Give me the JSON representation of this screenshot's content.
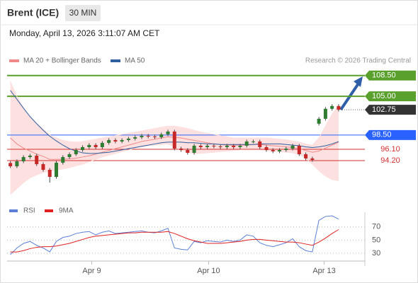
{
  "header": {
    "title": "Brent (ICE)",
    "interval": "30 MIN",
    "timestamp": "Monday, April 13, 2026 3:11:07 AM CET"
  },
  "chart_data": [
    {
      "type": "candlestick",
      "attribution": "Research © 2026 Trading Central",
      "up_color": "#2e7d32",
      "down_color": "#c62828",
      "xlim": [
        -0.5,
        54
      ],
      "ylim": [
        87.3,
        109.3
      ],
      "open": [
        93.8,
        93.24,
        94.08,
        94.79,
        95.03,
        93.6,
        92.65,
        91.46,
        93.84,
        94.79,
        95.27,
        95.98,
        96.46,
        96.82,
        96.46,
        97.18,
        97.65,
        97.41,
        97.65,
        97.89,
        98.13,
        98.37,
        98.25,
        98.13,
        98.61,
        99.08,
        96.22,
        95.98,
        95.51,
        96.7,
        96.46,
        96.7,
        96.58,
        96.46,
        96.7,
        96.46,
        96.7,
        97.41,
        97.41,
        96.46,
        95.98,
        95.75,
        95.98,
        96.22,
        96.7,
        95.27,
        94.56,
        100.4,
        101.23,
        102.9,
        103.37
      ],
      "high": [
        94.1,
        94.38,
        95.09,
        95.33,
        95.33,
        93.9,
        92.95,
        94.14,
        95.09,
        95.57,
        96.28,
        96.76,
        97.12,
        97.12,
        97.48,
        97.95,
        97.95,
        97.95,
        98.19,
        98.43,
        98.67,
        98.67,
        98.55,
        98.91,
        99.38,
        99.38,
        96.52,
        96.28,
        97.0,
        97.0,
        97.0,
        97.0,
        96.88,
        97.0,
        97.0,
        97.0,
        97.71,
        97.71,
        97.71,
        96.76,
        96.28,
        96.28,
        96.52,
        97.0,
        97.0,
        95.57,
        94.86,
        101.53,
        103.2,
        103.67,
        103.67
      ],
      "low": [
        92.94,
        92.94,
        93.78,
        94.49,
        93.3,
        92.35,
        90.5,
        91.16,
        93.54,
        94.49,
        94.97,
        95.68,
        96.16,
        96.16,
        96.16,
        96.88,
        97.11,
        97.11,
        97.35,
        97.59,
        97.83,
        97.95,
        97.83,
        97.83,
        98.31,
        95.92,
        95.68,
        95.21,
        95.21,
        96.16,
        96.16,
        96.28,
        96.16,
        96.16,
        96.16,
        96.16,
        96.4,
        97.11,
        96.16,
        95.68,
        95.45,
        95.45,
        95.68,
        95.92,
        94.97,
        94.26,
        94.02,
        100.1,
        100.93,
        102.6,
        102.45
      ],
      "close": [
        93.24,
        94.08,
        94.79,
        95.03,
        93.6,
        92.65,
        91.46,
        93.84,
        94.79,
        95.27,
        95.98,
        96.46,
        96.82,
        96.46,
        97.18,
        97.65,
        97.41,
        97.65,
        97.89,
        98.13,
        98.37,
        98.25,
        98.13,
        98.61,
        99.08,
        96.22,
        95.98,
        95.51,
        96.7,
        96.46,
        96.7,
        96.58,
        96.46,
        96.7,
        96.46,
        96.7,
        97.41,
        97.41,
        96.46,
        95.98,
        95.75,
        95.98,
        96.22,
        96.7,
        95.27,
        94.56,
        94.32,
        101.23,
        102.9,
        103.37,
        102.75
      ],
      "series": [
        {
          "name": "MA 20 + Bollinger Bands",
          "color": "#f08a8a",
          "band_color": "#fde0e0",
          "values": [
            98,
            97,
            96.3,
            95.8,
            95.3,
            94.9,
            94.4,
            94.4,
            94.4,
            94.5,
            94.6,
            94.8,
            95,
            95.3,
            95.6,
            95.9,
            96.2,
            96.5,
            96.8,
            97.1,
            97.4,
            97.6,
            97.8,
            98,
            98.2,
            98.1,
            98,
            97.8,
            97.6,
            97.4,
            97.2,
            97,
            96.9,
            96.8,
            96.8,
            96.8,
            96.8,
            96.9,
            96.9,
            96.8,
            96.7,
            96.6,
            96.5,
            96.4,
            96.2,
            95.9,
            95.6,
            95.8,
            96.3,
            96.8,
            97.3
          ],
          "upper": [
            107.5,
            105,
            103,
            101.5,
            100.5,
            99.5,
            98.5,
            98,
            97.6,
            97.4,
            97.3,
            97.4,
            97.6,
            97.8,
            98,
            98.2,
            98.4,
            98.6,
            98.8,
            99,
            99.2,
            99.4,
            99.6,
            99.8,
            100,
            100,
            99.8,
            99.6,
            99.3,
            99,
            98.8,
            98.6,
            98.4,
            98.2,
            98,
            98,
            98,
            98,
            98,
            98,
            97.9,
            97.8,
            97.7,
            97.5,
            97.3,
            97,
            96.8,
            98,
            100,
            102,
            103.5
          ],
          "lower": [
            88.5,
            89.5,
            90.5,
            91.3,
            91.8,
            92.2,
            92.4,
            92.6,
            92.8,
            93,
            93.3,
            93.6,
            94,
            94.4,
            94.8,
            95.1,
            95.4,
            95.7,
            96,
            96.3,
            96.5,
            96.7,
            96.8,
            96.9,
            97,
            96.5,
            96,
            95.6,
            95.4,
            95.4,
            95.5,
            95.6,
            95.7,
            95.8,
            95.9,
            96,
            96,
            96,
            96,
            95.9,
            95.8,
            95.7,
            95.6,
            95.5,
            95.2,
            94.6,
            93.6,
            92.5,
            91.6,
            91,
            90.8
          ]
        },
        {
          "name": "MA 50",
          "color": "#2f5f9f",
          "values": [
            106,
            104.5,
            103,
            101.6,
            100.4,
            99.3,
            98.3,
            97.5,
            96.8,
            96.2,
            95.8,
            95.5,
            95.4,
            95.4,
            95.5,
            95.6,
            95.8,
            96,
            96.2,
            96.4,
            96.6,
            96.8,
            97,
            97.2,
            97.3,
            97.3,
            97.3,
            97.2,
            97.2,
            97.1,
            97,
            97,
            96.9,
            96.9,
            96.9,
            96.9,
            96.9,
            96.9,
            97,
            97,
            97,
            97,
            96.9,
            96.8,
            96.7,
            96.5,
            96.4,
            96.5,
            96.7,
            97,
            97.4
          ]
        }
      ],
      "levels": [
        {
          "value": 108.5,
          "label": "108.50",
          "color": "#5aa02c",
          "style": "box"
        },
        {
          "value": 105.0,
          "label": "105.00",
          "color": "#5aa02c",
          "style": "box"
        },
        {
          "value": 102.75,
          "label": "102.75",
          "color": "#333333",
          "style": "current"
        },
        {
          "value": 98.5,
          "label": "98.50",
          "color": "#2962ff",
          "style": "box"
        },
        {
          "value": 96.1,
          "label": "96.10",
          "color": "#d32f2f",
          "style": "text"
        },
        {
          "value": 94.2,
          "label": "94.20",
          "color": "#d32f2f",
          "style": "text"
        }
      ]
    },
    {
      "type": "line",
      "xlim": [
        -0.5,
        54
      ],
      "ylim": [
        17,
        87
      ],
      "yticks": [
        70,
        50,
        30
      ],
      "xticks": [
        {
          "value": 12.4,
          "label": "Apr 9"
        },
        {
          "value": 30.2,
          "label": "Apr 10"
        },
        {
          "value": 47.8,
          "label": "Apr 13"
        }
      ],
      "grid": true,
      "series": [
        {
          "name": "RSI",
          "color": "#5b7fd6",
          "values": [
            28,
            38,
            45,
            48,
            42,
            38,
            32,
            48,
            54,
            56,
            60,
            62,
            63,
            58,
            62,
            64,
            60,
            61,
            62,
            63,
            64,
            62,
            61,
            64,
            68,
            38,
            36,
            35,
            48,
            46,
            49,
            48,
            47,
            50,
            48,
            50,
            58,
            56,
            46,
            42,
            40,
            43,
            46,
            52,
            40,
            34,
            32,
            80,
            86,
            87,
            82
          ]
        },
        {
          "name": "9MA",
          "color": "#e02020",
          "values": [
            32,
            32,
            34,
            37,
            39,
            40,
            40,
            41,
            43,
            45,
            48,
            51,
            54,
            56,
            57,
            58,
            59,
            60,
            61,
            61,
            62,
            62,
            62,
            62,
            63,
            60,
            56,
            52,
            49,
            47,
            45,
            45,
            45,
            46,
            47,
            48,
            50,
            51,
            51,
            50,
            49,
            48,
            47,
            47,
            46,
            44,
            42,
            47,
            53,
            60,
            66
          ]
        }
      ]
    }
  ]
}
